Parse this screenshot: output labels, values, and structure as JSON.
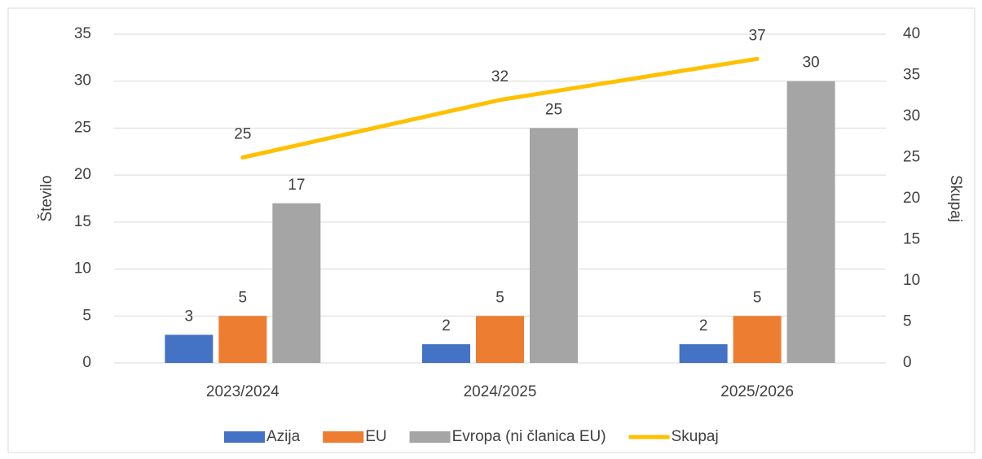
{
  "chart_data": {
    "type": "bar",
    "categories": [
      "2023/2024",
      "2024/2025",
      "2025/2026"
    ],
    "ylabel": "Število",
    "y2label": "Skupaj",
    "ylim": [
      0,
      35
    ],
    "yticks": [
      0,
      5,
      10,
      15,
      20,
      25,
      30,
      35
    ],
    "y2lim": [
      0,
      40
    ],
    "y2ticks": [
      0,
      5,
      10,
      15,
      20,
      25,
      30,
      35,
      40
    ],
    "grid": true,
    "legend": "bottom",
    "series": [
      {
        "name": "Azija",
        "color": "#4472c4",
        "values": [
          3,
          2,
          2
        ]
      },
      {
        "name": "EU",
        "color": "#ed7d31",
        "values": [
          5,
          5,
          5
        ]
      },
      {
        "name": "Evropa (ni članica EU)",
        "color": "#a5a5a5",
        "values": [
          17,
          25,
          30
        ]
      },
      {
        "name": "Skupaj",
        "color": "#ffc000",
        "type": "line",
        "axis": "y2",
        "values": [
          25,
          32,
          37
        ]
      }
    ]
  }
}
